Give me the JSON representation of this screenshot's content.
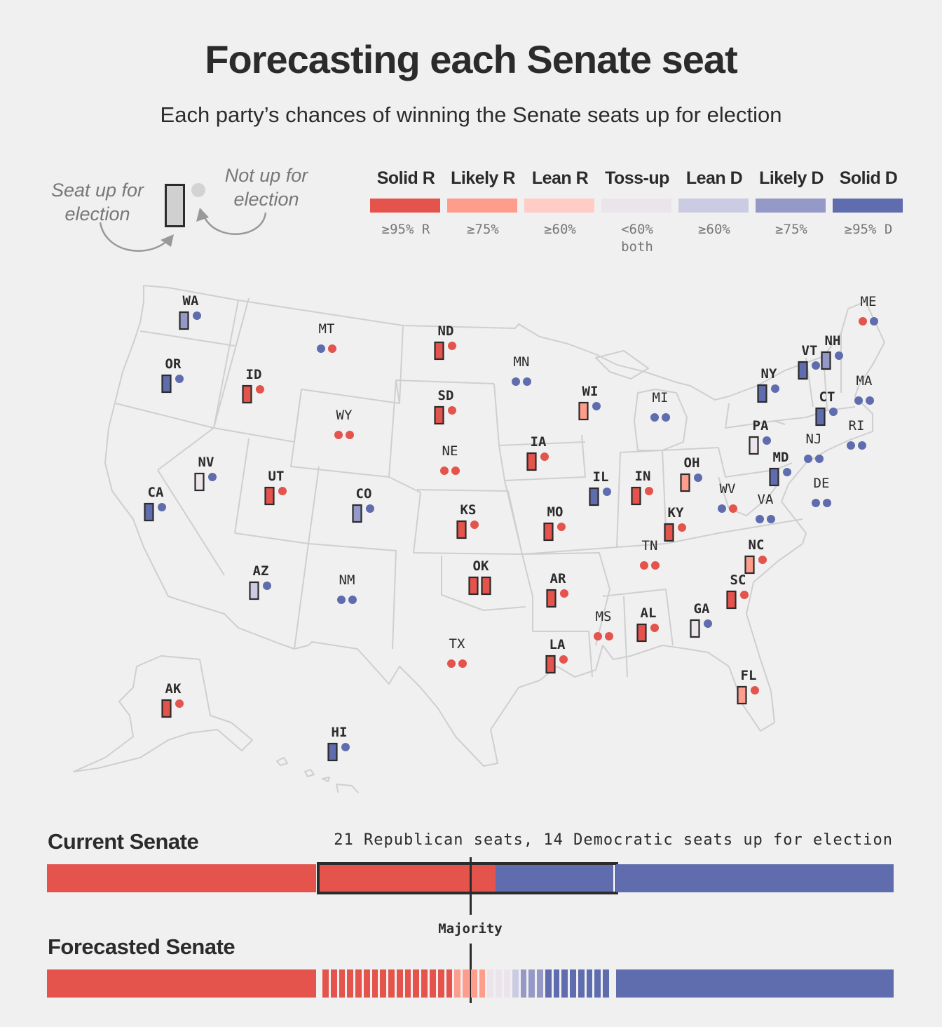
{
  "title": "Forecasting each Senate seat",
  "subtitle": "Each party’s chances of winning the Senate seats up for election",
  "legend": {
    "seat_up_label": "Seat up for\nelection",
    "not_up_label": "Not up for\nelection",
    "categories": [
      {
        "key": "solid_r",
        "label": "Solid R",
        "range": "≥95% R",
        "color": "#e4534c"
      },
      {
        "key": "likely_r",
        "label": "Likely R",
        "range": "≥75%",
        "color": "#ff9d8d"
      },
      {
        "key": "lean_r",
        "label": "Lean R",
        "range": "≥60%",
        "color": "#ffcdc5"
      },
      {
        "key": "tossup",
        "label": "Toss-up",
        "range": "<60%\nboth",
        "color": "#ebe4ea"
      },
      {
        "key": "lean_d",
        "label": "Lean D",
        "range": "≥60%",
        "color": "#cbcce3"
      },
      {
        "key": "likely_d",
        "label": "Likely D",
        "range": "≥75%",
        "color": "#9599c8"
      },
      {
        "key": "solid_d",
        "label": "Solid D",
        "range": "≥95% D",
        "color": "#5f6cae"
      }
    ]
  },
  "party_colors": {
    "R": "#e4534c",
    "D": "#5f6cae"
  },
  "states": [
    {
      "abbr": "WA",
      "races": [
        "likely_d"
      ],
      "held": [
        "D"
      ]
    },
    {
      "abbr": "OR",
      "races": [
        "solid_d"
      ],
      "held": [
        "D"
      ]
    },
    {
      "abbr": "CA",
      "races": [
        "solid_d"
      ],
      "held": [
        "D"
      ]
    },
    {
      "abbr": "NV",
      "races": [
        "tossup"
      ],
      "held": [
        "D"
      ]
    },
    {
      "abbr": "ID",
      "races": [
        "solid_r"
      ],
      "held": [
        "R"
      ]
    },
    {
      "abbr": "MT",
      "races": [],
      "held": [
        "D",
        "R"
      ]
    },
    {
      "abbr": "WY",
      "races": [],
      "held": [
        "R",
        "R"
      ]
    },
    {
      "abbr": "UT",
      "races": [
        "solid_r"
      ],
      "held": [
        "R"
      ]
    },
    {
      "abbr": "CO",
      "races": [
        "likely_d"
      ],
      "held": [
        "D"
      ]
    },
    {
      "abbr": "AZ",
      "races": [
        "lean_d"
      ],
      "held": [
        "D"
      ]
    },
    {
      "abbr": "NM",
      "races": [],
      "held": [
        "D",
        "D"
      ]
    },
    {
      "abbr": "ND",
      "races": [
        "solid_r"
      ],
      "held": [
        "R"
      ]
    },
    {
      "abbr": "SD",
      "races": [
        "solid_r"
      ],
      "held": [
        "R"
      ]
    },
    {
      "abbr": "NE",
      "races": [],
      "held": [
        "R",
        "R"
      ]
    },
    {
      "abbr": "KS",
      "races": [
        "solid_r"
      ],
      "held": [
        "R"
      ]
    },
    {
      "abbr": "OK",
      "races": [
        "solid_r",
        "solid_r"
      ],
      "held": []
    },
    {
      "abbr": "TX",
      "races": [],
      "held": [
        "R",
        "R"
      ]
    },
    {
      "abbr": "MN",
      "races": [],
      "held": [
        "D",
        "D"
      ]
    },
    {
      "abbr": "IA",
      "races": [
        "solid_r"
      ],
      "held": [
        "R"
      ]
    },
    {
      "abbr": "MO",
      "races": [
        "solid_r"
      ],
      "held": [
        "R"
      ]
    },
    {
      "abbr": "AR",
      "races": [
        "solid_r"
      ],
      "held": [
        "R"
      ]
    },
    {
      "abbr": "LA",
      "races": [
        "solid_r"
      ],
      "held": [
        "R"
      ]
    },
    {
      "abbr": "WI",
      "races": [
        "likely_r"
      ],
      "held": [
        "D"
      ]
    },
    {
      "abbr": "IL",
      "races": [
        "solid_d"
      ],
      "held": [
        "D"
      ]
    },
    {
      "abbr": "MI",
      "races": [],
      "held": [
        "D",
        "D"
      ]
    },
    {
      "abbr": "IN",
      "races": [
        "solid_r"
      ],
      "held": [
        "R"
      ]
    },
    {
      "abbr": "OH",
      "races": [
        "likely_r"
      ],
      "held": [
        "D"
      ]
    },
    {
      "abbr": "KY",
      "races": [
        "solid_r"
      ],
      "held": [
        "R"
      ]
    },
    {
      "abbr": "TN",
      "races": [],
      "held": [
        "R",
        "R"
      ]
    },
    {
      "abbr": "MS",
      "races": [],
      "held": [
        "R",
        "R"
      ]
    },
    {
      "abbr": "AL",
      "races": [
        "solid_r"
      ],
      "held": [
        "R"
      ]
    },
    {
      "abbr": "GA",
      "races": [
        "tossup"
      ],
      "held": [
        "D"
      ]
    },
    {
      "abbr": "FL",
      "races": [
        "likely_r"
      ],
      "held": [
        "R"
      ]
    },
    {
      "abbr": "SC",
      "races": [
        "solid_r"
      ],
      "held": [
        "R"
      ]
    },
    {
      "abbr": "NC",
      "races": [
        "likely_r"
      ],
      "held": [
        "R"
      ]
    },
    {
      "abbr": "WV",
      "races": [],
      "held": [
        "D",
        "R"
      ]
    },
    {
      "abbr": "VA",
      "races": [],
      "held": [
        "D",
        "D"
      ]
    },
    {
      "abbr": "PA",
      "races": [
        "tossup"
      ],
      "held": [
        "D"
      ]
    },
    {
      "abbr": "MD",
      "races": [
        "solid_d"
      ],
      "held": [
        "D"
      ]
    },
    {
      "abbr": "DE",
      "races": [],
      "held": [
        "D",
        "D"
      ]
    },
    {
      "abbr": "NJ",
      "races": [],
      "held": [
        "D",
        "D"
      ]
    },
    {
      "abbr": "NY",
      "races": [
        "solid_d"
      ],
      "held": [
        "D"
      ]
    },
    {
      "abbr": "CT",
      "races": [
        "solid_d"
      ],
      "held": [
        "D"
      ]
    },
    {
      "abbr": "RI",
      "races": [],
      "held": [
        "D",
        "D"
      ]
    },
    {
      "abbr": "MA",
      "races": [],
      "held": [
        "D",
        "D"
      ]
    },
    {
      "abbr": "VT",
      "races": [
        "solid_d"
      ],
      "held": [
        "D"
      ]
    },
    {
      "abbr": "NH",
      "races": [
        "likely_d"
      ],
      "held": [
        "D"
      ]
    },
    {
      "abbr": "ME",
      "races": [],
      "held": [
        "R",
        "D"
      ]
    },
    {
      "abbr": "AK",
      "races": [
        "solid_r"
      ],
      "held": [
        "R"
      ]
    },
    {
      "abbr": "HI",
      "races": [
        "solid_d"
      ],
      "held": [
        "D"
      ]
    }
  ],
  "current_senate": {
    "title": "Current Senate",
    "note": "21 Republican seats, 14 Democratic seats up for election",
    "r_not_up": 32,
    "r_up": 21,
    "d_up": 14,
    "d_not_up": 33
  },
  "majority_label": "Majority",
  "forecasted_senate": {
    "title": "Forecasted Senate",
    "r_not_up": 32,
    "up_ratings": {
      "solid_r": 16,
      "likely_r": 4,
      "lean_r": 0,
      "tossup": 3,
      "lean_d": 1,
      "likely_d": 3,
      "solid_d": 8
    },
    "d_not_up": 33
  }
}
